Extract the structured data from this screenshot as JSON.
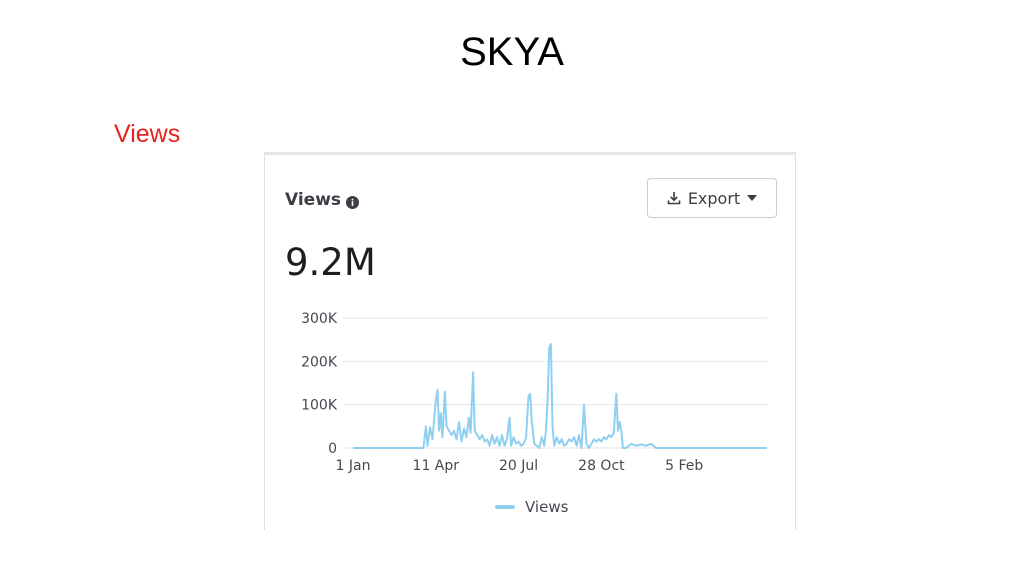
{
  "slide": {
    "title": "SKYA",
    "section_label": "Views"
  },
  "card": {
    "title": "Views",
    "info_icon": "info-circle-icon",
    "export_label": "Export",
    "export_icon": "download-icon",
    "dropdown_icon": "caret-down-icon",
    "total_value": "9.2M"
  },
  "colors": {
    "series": "#8fd0f0",
    "grid": "#e4e6eb",
    "section_label": "#e8211c"
  },
  "chart_data": {
    "type": "line",
    "title": "",
    "xlabel": "",
    "ylabel": "",
    "ylim": [
      0,
      300000
    ],
    "y_ticks": [
      {
        "value": 0,
        "label": "0"
      },
      {
        "value": 100000,
        "label": "100K"
      },
      {
        "value": 200000,
        "label": "200K"
      },
      {
        "value": 300000,
        "label": "300K"
      }
    ],
    "x_ticks": [
      {
        "day": 0,
        "label": "1 Jan"
      },
      {
        "day": 100,
        "label": "11 Apr"
      },
      {
        "day": 200,
        "label": "20 Jul"
      },
      {
        "day": 300,
        "label": "28 Oct"
      },
      {
        "day": 400,
        "label": "5 Feb"
      }
    ],
    "xlim": [
      0,
      500
    ],
    "grid": true,
    "legend_position": "bottom",
    "series": [
      {
        "name": "Views",
        "points": [
          [
            0,
            0
          ],
          [
            60,
            0
          ],
          [
            85,
            0
          ],
          [
            88,
            50000
          ],
          [
            90,
            5000
          ],
          [
            93,
            48000
          ],
          [
            96,
            20000
          ],
          [
            100,
            110000
          ],
          [
            102,
            135000
          ],
          [
            104,
            40000
          ],
          [
            106,
            80000
          ],
          [
            108,
            25000
          ],
          [
            111,
            130000
          ],
          [
            113,
            50000
          ],
          [
            116,
            40000
          ],
          [
            119,
            30000
          ],
          [
            122,
            40000
          ],
          [
            125,
            20000
          ],
          [
            128,
            60000
          ],
          [
            131,
            15000
          ],
          [
            134,
            45000
          ],
          [
            137,
            25000
          ],
          [
            140,
            70000
          ],
          [
            142,
            35000
          ],
          [
            145,
            175000
          ],
          [
            147,
            40000
          ],
          [
            150,
            30000
          ],
          [
            153,
            20000
          ],
          [
            156,
            30000
          ],
          [
            159,
            15000
          ],
          [
            162,
            20000
          ],
          [
            165,
            5000
          ],
          [
            168,
            30000
          ],
          [
            171,
            10000
          ],
          [
            174,
            25000
          ],
          [
            177,
            5000
          ],
          [
            180,
            30000
          ],
          [
            183,
            5000
          ],
          [
            186,
            20000
          ],
          [
            189,
            70000
          ],
          [
            191,
            5000
          ],
          [
            194,
            25000
          ],
          [
            197,
            10000
          ],
          [
            200,
            15000
          ],
          [
            203,
            5000
          ],
          [
            206,
            10000
          ],
          [
            209,
            25000
          ],
          [
            212,
            120000
          ],
          [
            214,
            125000
          ],
          [
            216,
            60000
          ],
          [
            219,
            10000
          ],
          [
            222,
            5000
          ],
          [
            225,
            0
          ],
          [
            228,
            25000
          ],
          [
            231,
            5000
          ],
          [
            233,
            40000
          ],
          [
            235,
            110000
          ],
          [
            237,
            230000
          ],
          [
            239,
            240000
          ],
          [
            241,
            50000
          ],
          [
            243,
            5000
          ],
          [
            246,
            25000
          ],
          [
            249,
            10000
          ],
          [
            252,
            20000
          ],
          [
            255,
            5000
          ],
          [
            258,
            10000
          ],
          [
            261,
            20000
          ],
          [
            264,
            15000
          ],
          [
            267,
            25000
          ],
          [
            270,
            5000
          ],
          [
            273,
            30000
          ],
          [
            276,
            0
          ],
          [
            279,
            100000
          ],
          [
            282,
            10000
          ],
          [
            285,
            0
          ],
          [
            288,
            10000
          ],
          [
            291,
            20000
          ],
          [
            294,
            15000
          ],
          [
            297,
            20000
          ],
          [
            300,
            15000
          ],
          [
            303,
            25000
          ],
          [
            306,
            20000
          ],
          [
            309,
            30000
          ],
          [
            312,
            25000
          ],
          [
            315,
            35000
          ],
          [
            318,
            125000
          ],
          [
            320,
            40000
          ],
          [
            322,
            60000
          ],
          [
            324,
            40000
          ],
          [
            326,
            0
          ],
          [
            330,
            0
          ],
          [
            336,
            10000
          ],
          [
            342,
            5000
          ],
          [
            348,
            8000
          ],
          [
            354,
            5000
          ],
          [
            360,
            10000
          ],
          [
            366,
            0
          ],
          [
            500,
            0
          ]
        ]
      }
    ]
  }
}
